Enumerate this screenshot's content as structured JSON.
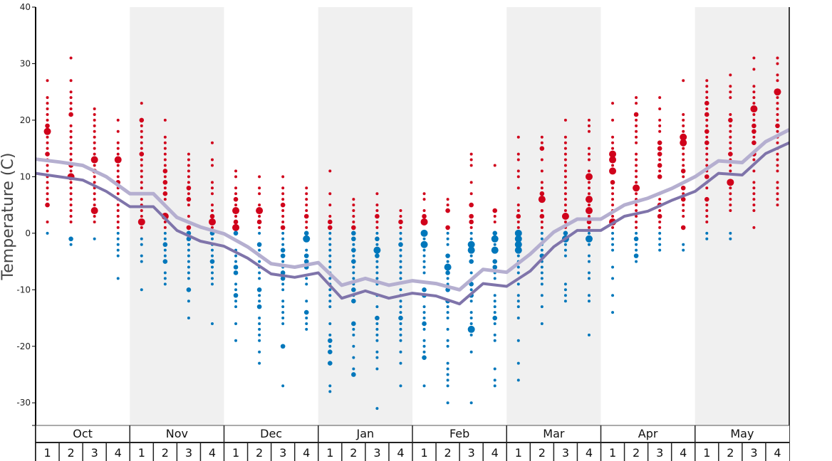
{
  "chart_data": {
    "type": "scatter",
    "ylabel": "Temperature (C)",
    "ylim": [
      -34,
      40
    ],
    "yticks": [
      40,
      30,
      20,
      10,
      0,
      -10,
      -20,
      -30
    ],
    "grid": false,
    "months": [
      "Oct",
      "Nov",
      "Dec",
      "Jan",
      "Feb",
      "Mar",
      "Apr",
      "May"
    ],
    "week_labels": [
      "1",
      "2",
      "3",
      "4"
    ],
    "colors": {
      "above_zero": "#d0021b",
      "at_or_below_zero": "#0077bb",
      "line_upper": "#b5afd0",
      "line_lower": "#7f74aa",
      "shaded_month": "#f0f0f0"
    },
    "line_upper": [
      13.1,
      12.6,
      12.0,
      10.0,
      7.0,
      7.0,
      2.8,
      1.1,
      -0.1,
      -2.4,
      -5.4,
      -6.0,
      -5.2,
      -9.2,
      -8.0,
      -9.2,
      -8.4,
      -8.9,
      -10.0,
      -6.4,
      -6.9,
      -3.7,
      0.2,
      2.5,
      2.5,
      5.0,
      6.2,
      7.9,
      10.0,
      12.8,
      12.5,
      16.2,
      18.3
    ],
    "line_lower": [
      10.6,
      10.0,
      9.4,
      7.4,
      4.7,
      4.7,
      0.5,
      -1.4,
      -2.3,
      -4.4,
      -7.2,
      -7.8,
      -7.0,
      -11.5,
      -10.2,
      -11.5,
      -10.6,
      -11.1,
      -12.5,
      -8.9,
      -9.4,
      -6.7,
      -2.4,
      0.5,
      0.5,
      3.0,
      3.9,
      5.8,
      7.4,
      10.6,
      10.3,
      14.1,
      16.0
    ],
    "weeks": [
      {
        "temps": [
          27,
          24,
          23,
          22,
          21,
          20,
          19,
          18,
          17,
          16,
          15,
          14,
          13,
          12,
          11,
          10,
          9,
          8,
          7,
          6,
          5,
          2,
          0
        ],
        "medium": [
          19,
          14,
          5
        ],
        "large": [
          18
        ]
      },
      {
        "temps": [
          31,
          27,
          25,
          24,
          23,
          22,
          21,
          19,
          18,
          17,
          16,
          15,
          14,
          13,
          12,
          11,
          10,
          9,
          8,
          7,
          6,
          5,
          4,
          3,
          2,
          -1,
          -2
        ],
        "medium": [
          21,
          12,
          -1
        ],
        "large": [
          10
        ]
      },
      {
        "temps": [
          22,
          21,
          20,
          19,
          18,
          17,
          16,
          15,
          14,
          13,
          12,
          11,
          10,
          9,
          8,
          7,
          6,
          5,
          4,
          3,
          2,
          -1
        ],
        "medium": [
          11
        ],
        "large": [
          13,
          4
        ]
      },
      {
        "temps": [
          20,
          18,
          16,
          15,
          14,
          13,
          12,
          11,
          10,
          9,
          8,
          7,
          6,
          5,
          4,
          3,
          2,
          1,
          0,
          -1,
          -2,
          -3,
          -4,
          -8
        ],
        "medium": [
          9
        ],
        "large": [
          13
        ]
      },
      {
        "temps": [
          23,
          20,
          19,
          18,
          17,
          16,
          15,
          14,
          13,
          12,
          11,
          10,
          9,
          8,
          7,
          6,
          5,
          4,
          3,
          2,
          1,
          -1,
          -2,
          -4,
          -5,
          -10
        ],
        "medium": [
          20,
          14
        ],
        "large": [
          2
        ]
      },
      {
        "temps": [
          20,
          17,
          16,
          15,
          14,
          13,
          12,
          11,
          10,
          9,
          8,
          7,
          6,
          3,
          2,
          1,
          0,
          -1,
          -2,
          -3,
          -4,
          -5,
          -7,
          -8,
          -9
        ],
        "medium": [
          11,
          9,
          7,
          -2,
          -5
        ],
        "large": [
          3
        ]
      },
      {
        "temps": [
          14,
          13,
          12,
          11,
          10,
          9,
          8,
          7,
          6,
          5,
          3,
          2,
          1,
          0,
          -1,
          -2,
          -3,
          -4,
          -5,
          -6,
          -7,
          -8,
          -10,
          -12,
          -15
        ],
        "medium": [
          8,
          6,
          1,
          0,
          -1,
          -10
        ],
        "large": []
      },
      {
        "temps": [
          16,
          13,
          12,
          9,
          8,
          7,
          5,
          4,
          3,
          2,
          1,
          0,
          -1,
          -2,
          -3,
          -4,
          -5,
          -6,
          -7,
          -8,
          -9,
          -16
        ],
        "medium": [
          3,
          0,
          -5
        ],
        "large": [
          2
        ]
      },
      {
        "temps": [
          11,
          10,
          8,
          7,
          6,
          5,
          4,
          3,
          2,
          1,
          0,
          -3,
          -4,
          -5,
          -6,
          -7,
          -9,
          -10,
          -11,
          -12,
          -13,
          -16,
          -19
        ],
        "medium": [
          6,
          2,
          0,
          -6,
          -7,
          -11
        ],
        "large": [
          4,
          1
        ]
      },
      {
        "temps": [
          10,
          8,
          7,
          5,
          4,
          3,
          2,
          1,
          0,
          -2,
          -3,
          -4,
          -5,
          -6,
          -7,
          -8,
          -10,
          -11,
          -12,
          -13,
          -15,
          -16,
          -17,
          -18,
          -19,
          -21,
          -23
        ],
        "medium": [
          2,
          -2,
          -10,
          -13
        ],
        "large": [
          4
        ]
      },
      {
        "temps": [
          10,
          8,
          7,
          6,
          5,
          4,
          3,
          2,
          1,
          0,
          -1,
          -2,
          -3,
          -4,
          -5,
          -6,
          -7,
          -8,
          -9,
          -10,
          -12,
          -13,
          -14,
          -15,
          -16,
          -20,
          -27
        ],
        "medium": [
          5,
          1,
          -3,
          -4,
          -7,
          -8,
          -20
        ],
        "large": []
      },
      {
        "temps": [
          8,
          7,
          6,
          5,
          4,
          3,
          2,
          1,
          0,
          -1,
          -3,
          -4,
          -5,
          -6,
          -8,
          -9,
          -12,
          -14,
          -15,
          -16,
          -17
        ],
        "medium": [
          3,
          0,
          -4,
          -5,
          -6,
          -14
        ],
        "large": [
          -1
        ]
      },
      {
        "temps": [
          11,
          7,
          5,
          3,
          2,
          1,
          0,
          -1,
          -2,
          -3,
          -4,
          -5,
          -6,
          -7,
          -8,
          -9,
          -10,
          -11,
          -12,
          -13,
          -16,
          -18,
          -19,
          -20,
          -21,
          -23,
          -27,
          -28
        ],
        "medium": [
          2,
          1,
          -19,
          -21,
          -23
        ],
        "large": []
      },
      {
        "temps": [
          6,
          5,
          4,
          3,
          2,
          1,
          0,
          -1,
          -2,
          -3,
          -4,
          -5,
          -6,
          -7,
          -8,
          -9,
          -10,
          -11,
          -12,
          -16,
          -17,
          -18,
          -20,
          -22,
          -24,
          -25
        ],
        "medium": [
          1,
          0,
          -1,
          -3,
          -5,
          -10,
          -12,
          -16,
          -25
        ],
        "large": []
      },
      {
        "temps": [
          7,
          5,
          4,
          3,
          2,
          1,
          0,
          -1,
          -2,
          -3,
          -4,
          -5,
          -6,
          -7,
          -8,
          -9,
          -11,
          -13,
          -15,
          -16,
          -17,
          -18,
          -19,
          -21,
          -22,
          -24,
          -31
        ],
        "medium": [
          3,
          -1,
          -4,
          -15
        ],
        "large": [
          -3
        ]
      },
      {
        "temps": [
          4,
          3,
          2,
          1,
          0,
          -1,
          -2,
          -3,
          -4,
          -5,
          -6,
          -7,
          -8,
          -10,
          -11,
          -12,
          -13,
          -14,
          -15,
          -16,
          -17,
          -18,
          -19,
          -21,
          -23,
          -27
        ],
        "medium": [
          2,
          -2,
          -15
        ],
        "large": []
      },
      {
        "temps": [
          7,
          6,
          4,
          3,
          2,
          0,
          -1,
          -2,
          -3,
          -4,
          -5,
          -6,
          -7,
          -10,
          -11,
          -13,
          -14,
          -15,
          -16,
          -17,
          -19,
          -20,
          -21,
          -22,
          -27
        ],
        "medium": [
          3,
          -10,
          -11,
          -16,
          -22
        ],
        "large": [
          2,
          0,
          -2
        ]
      },
      {
        "temps": [
          6,
          5,
          4,
          1,
          0,
          -1,
          -2,
          -4,
          -5,
          -6,
          -7,
          -8,
          -9,
          -10,
          -12,
          -13,
          -14,
          -15,
          -17,
          -19,
          -20,
          -23,
          -24,
          -25,
          -26,
          -27,
          -30
        ],
        "medium": [
          4,
          1,
          -4,
          -7,
          -10,
          -12
        ],
        "large": [
          -6
        ]
      },
      {
        "temps": [
          14,
          13,
          12,
          9,
          7,
          5,
          3,
          2,
          1,
          0,
          -1,
          -2,
          -3,
          -4,
          -5,
          -7,
          -9,
          -10,
          -11,
          -12,
          -14,
          -15,
          -16,
          -17,
          -18,
          -21,
          -30
        ],
        "medium": [
          5,
          3,
          2,
          -5,
          -9,
          -11
        ],
        "large": [
          -2,
          -3,
          -17
        ]
      },
      {
        "temps": [
          12,
          4,
          3,
          2,
          0,
          -1,
          -2,
          -3,
          -5,
          -6,
          -7,
          -8,
          -11,
          -12,
          -13,
          -14,
          -15,
          -16,
          -18,
          -19,
          -24,
          -26,
          -27
        ],
        "medium": [
          4,
          0,
          -5,
          -6,
          -15
        ],
        "large": [
          -1,
          -3
        ]
      },
      {
        "temps": [
          17,
          14,
          13,
          11,
          10,
          8,
          5,
          4,
          3,
          2,
          1,
          0,
          -1,
          -2,
          -3,
          -4,
          -5,
          -6,
          -7,
          -9,
          -11,
          -12,
          -13,
          -15,
          -19,
          -23,
          -26
        ],
        "medium": [
          3
        ],
        "large": [
          0,
          -1,
          -2,
          -3
        ]
      },
      {
        "temps": [
          17,
          16,
          15,
          13,
          11,
          9,
          8,
          7,
          6,
          4,
          3,
          2,
          1,
          0,
          -1,
          -2,
          -3,
          -4,
          -5,
          -6,
          -7,
          -8,
          -9,
          -11,
          -13,
          -16
        ],
        "medium": [
          15,
          7,
          3,
          -4
        ],
        "large": [
          6
        ]
      },
      {
        "temps": [
          20,
          17,
          16,
          15,
          14,
          13,
          12,
          11,
          10,
          9,
          8,
          7,
          6,
          5,
          4,
          3,
          2,
          1,
          0,
          -1,
          -2,
          -3,
          -4,
          -9,
          -10,
          -11,
          -12
        ],
        "medium": [
          0
        ],
        "large": [
          3,
          -1
        ]
      },
      {
        "temps": [
          20,
          19,
          18,
          15,
          14,
          13,
          11,
          10,
          9,
          8,
          7,
          6,
          5,
          4,
          3,
          2,
          1,
          0,
          -1,
          -2,
          -4,
          -5,
          -7,
          -8,
          -11,
          -12,
          -18
        ],
        "medium": [
          2
        ],
        "large": [
          10,
          6,
          4,
          -1
        ]
      },
      {
        "temps": [
          23,
          20,
          17,
          16,
          15,
          14,
          13,
          12,
          11,
          9,
          8,
          7,
          6,
          5,
          4,
          3,
          2,
          1,
          0,
          -1,
          -2,
          -3,
          -6,
          -8,
          -11,
          -14
        ],
        "medium": [
          9
        ],
        "large": [
          14,
          13,
          11,
          2
        ]
      },
      {
        "temps": [
          24,
          23,
          21,
          20,
          19,
          18,
          17,
          16,
          14,
          13,
          12,
          11,
          10,
          9,
          8,
          7,
          6,
          5,
          4,
          3,
          2,
          1,
          0,
          -1,
          -2,
          -3,
          -4,
          -5
        ],
        "medium": [
          21,
          -1,
          -4
        ],
        "large": [
          8
        ]
      },
      {
        "temps": [
          24,
          22,
          20,
          19,
          18,
          16,
          15,
          14,
          13,
          12,
          11,
          10,
          7,
          6,
          5,
          4,
          3,
          2,
          1,
          0,
          -1,
          -2,
          -3
        ],
        "medium": [
          16,
          15,
          14,
          12,
          10,
          5,
          3
        ],
        "large": []
      },
      {
        "temps": [
          27,
          21,
          20,
          19,
          18,
          17,
          16,
          15,
          14,
          13,
          12,
          11,
          10,
          8,
          7,
          6,
          5,
          4,
          3,
          1,
          -2,
          -3
        ],
        "medium": [
          11,
          8,
          6,
          1
        ],
        "large": [
          17,
          16
        ]
      },
      {
        "temps": [
          27,
          26,
          25,
          24,
          23,
          22,
          21,
          20,
          19,
          18,
          17,
          16,
          15,
          14,
          13,
          12,
          11,
          10,
          9,
          8,
          6,
          5,
          4,
          3,
          2,
          0,
          -1
        ],
        "medium": [
          23,
          21,
          18,
          16,
          10,
          6
        ],
        "large": []
      },
      {
        "temps": [
          28,
          26,
          25,
          24,
          21,
          20,
          19,
          18,
          17,
          16,
          15,
          14,
          13,
          12,
          11,
          9,
          8,
          7,
          6,
          5,
          4,
          0,
          -1
        ],
        "medium": [
          20,
          14
        ],
        "large": [
          9
        ]
      },
      {
        "temps": [
          31,
          29,
          26,
          25,
          24,
          23,
          22,
          21,
          20,
          19,
          18,
          17,
          16,
          14,
          13,
          11,
          9,
          8,
          7,
          6,
          5,
          4,
          1
        ],
        "medium": [
          19,
          18,
          16,
          14
        ],
        "large": [
          22
        ]
      },
      {
        "temps": [
          31,
          30,
          28,
          27,
          25,
          24,
          23,
          22,
          21,
          20,
          19,
          18,
          17,
          16,
          15,
          14,
          13,
          12,
          11,
          9,
          8,
          7,
          6,
          5
        ],
        "medium": [
          19
        ],
        "large": [
          25
        ]
      }
    ]
  }
}
